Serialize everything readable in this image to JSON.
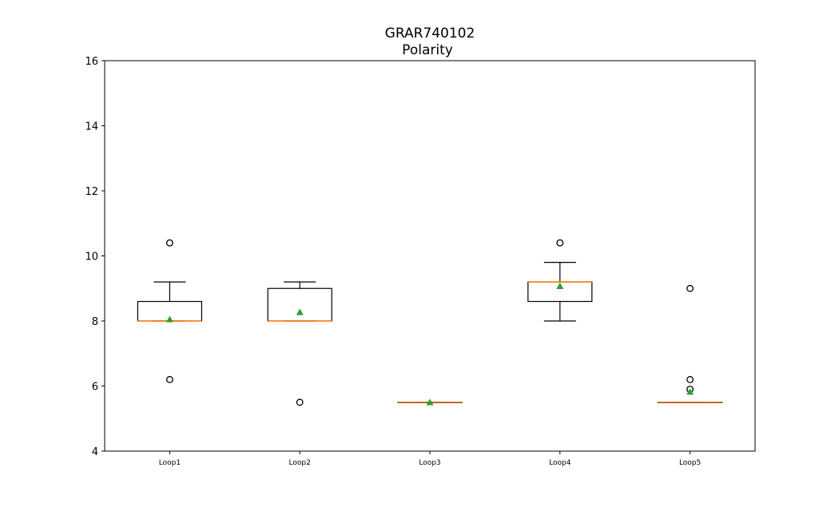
{
  "chart_data": {
    "type": "box",
    "title": "GRAR740102",
    "subtitle": "Polarity",
    "xlabel": "",
    "ylabel": "",
    "ylim": [
      4,
      16
    ],
    "yticks": [
      "4",
      "6",
      "8",
      "10",
      "12",
      "14",
      "16"
    ],
    "grid": false,
    "categories": [
      "Loop1",
      "Loop2",
      "Loop3",
      "Loop4",
      "Loop5"
    ],
    "boxes": [
      {
        "q1": 8.0,
        "median": 8.0,
        "q3": 8.6,
        "whisker_low": 8.0,
        "whisker_high": 9.2,
        "mean": 8.05,
        "outliers": [
          10.4,
          6.2
        ]
      },
      {
        "q1": 8.0,
        "median": 8.0,
        "q3": 9.0,
        "whisker_low": 8.0,
        "whisker_high": 9.2,
        "mean": 8.27,
        "outliers": [
          5.5
        ]
      },
      {
        "q1": 5.5,
        "median": 5.5,
        "q3": 5.5,
        "whisker_low": 5.5,
        "whisker_high": 5.5,
        "mean": 5.5,
        "outliers": []
      },
      {
        "q1": 8.6,
        "median": 9.2,
        "q3": 9.2,
        "whisker_low": 8.0,
        "whisker_high": 9.8,
        "mean": 9.07,
        "outliers": [
          10.4
        ]
      },
      {
        "q1": 5.5,
        "median": 5.5,
        "q3": 5.5,
        "whisker_low": 5.5,
        "whisker_high": 5.5,
        "mean": 5.82,
        "outliers": [
          9.0,
          6.2,
          5.9
        ]
      }
    ],
    "colors": {
      "box": "#000000",
      "median": "#ff7f0e",
      "mean": "#2ca02c",
      "outlier": "#000000"
    }
  }
}
